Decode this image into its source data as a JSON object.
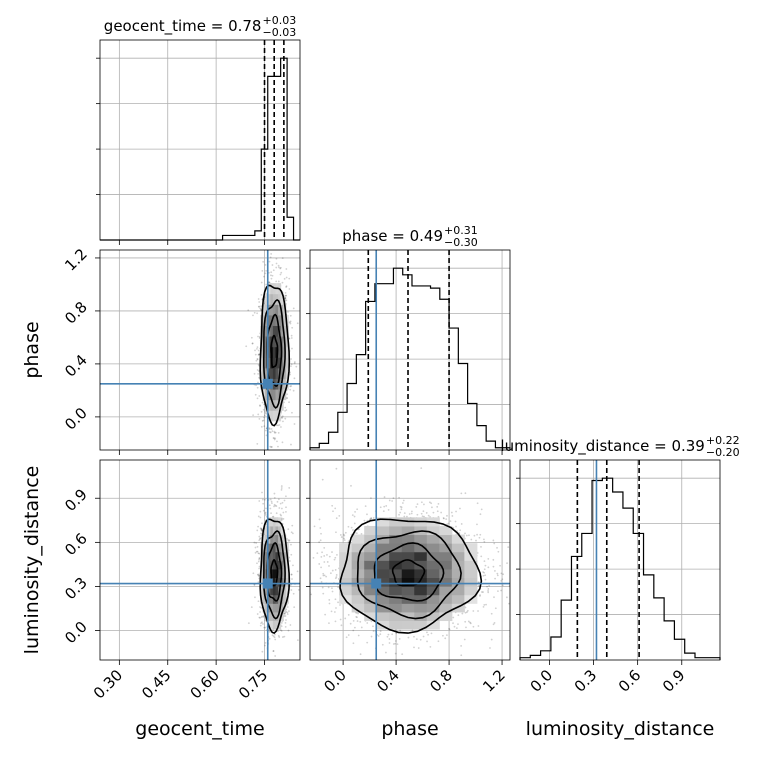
{
  "chart_data": {
    "type": "corner",
    "parameters": [
      "geocent_time",
      "phase",
      "luminosity_distance"
    ],
    "truths": {
      "geocent_time": 0.76,
      "phase": 0.25,
      "luminosity_distance": 0.32
    },
    "truth_color": "#4682b4",
    "titles": {
      "geocent_time": {
        "prefix": "geocent_time = 0.78",
        "plus": "+0.03",
        "minus": "−0.03"
      },
      "phase": {
        "prefix": "phase = 0.49",
        "plus": "+0.31",
        "minus": "−0.30"
      },
      "luminosity_distance": {
        "prefix": "luminosity_distance = 0.39",
        "plus": "+0.22",
        "minus": "−0.20"
      }
    },
    "quantiles": {
      "geocent_time": [
        0.75,
        0.78,
        0.81
      ],
      "phase": [
        0.19,
        0.49,
        0.8
      ],
      "luminosity_distance": [
        0.19,
        0.39,
        0.61
      ]
    },
    "axes": {
      "geocent_time": {
        "range": [
          0.24,
          0.86
        ],
        "ticks": [
          0.3,
          0.45,
          0.6,
          0.75
        ],
        "tick_labels": [
          "0.30",
          "0.45",
          "0.60",
          "0.75"
        ]
      },
      "phase": {
        "range": [
          -0.25,
          1.26
        ],
        "ticks": [
          0.0,
          0.4,
          0.8,
          1.2
        ],
        "tick_labels": [
          "0.0",
          "0.4",
          "0.8",
          "1.2"
        ]
      },
      "luminosity_distance": {
        "range": [
          -0.2,
          1.16
        ],
        "ticks": [
          0.0,
          0.3,
          0.6,
          0.9
        ],
        "tick_labels": [
          "0.0",
          "0.3",
          "0.6",
          "0.9"
        ]
      }
    },
    "histograms": {
      "geocent_time": {
        "edges": [
          0.24,
          0.62,
          0.72,
          0.74,
          0.76,
          0.78,
          0.8,
          0.82,
          0.84,
          0.86
        ],
        "counts": [
          0,
          1,
          2,
          20,
          36,
          36,
          40,
          5,
          0
        ]
      },
      "phase": {
        "edges": [
          -0.25,
          -0.18,
          -0.11,
          -0.04,
          0.03,
          0.1,
          0.17,
          0.24,
          0.31,
          0.38,
          0.45,
          0.52,
          0.59,
          0.66,
          0.73,
          0.8,
          0.87,
          0.94,
          1.01,
          1.08,
          1.15,
          1.26
        ],
        "counts": [
          1,
          3,
          8,
          17,
          30,
          43,
          67,
          75,
          75,
          82,
          79,
          74,
          74,
          73,
          68,
          55,
          39,
          21,
          11,
          4,
          1
        ]
      },
      "luminosity_distance": {
        "edges": [
          -0.2,
          -0.13,
          -0.06,
          0.01,
          0.08,
          0.15,
          0.22,
          0.29,
          0.36,
          0.43,
          0.5,
          0.57,
          0.64,
          0.71,
          0.78,
          0.85,
          0.92,
          0.99,
          1.06,
          1.16
        ],
        "counts": [
          1,
          2,
          4,
          10,
          26,
          45,
          55,
          78,
          79,
          73,
          66,
          55,
          37,
          27,
          17,
          9,
          3,
          1,
          1
        ]
      }
    },
    "joint": [
      {
        "x": "geocent_time",
        "y": "phase",
        "mean": [
          0.78,
          0.49
        ],
        "sd": [
          0.022,
          0.26
        ],
        "n": 1400,
        "contour_levels": [
          0.45,
          1.0,
          1.5,
          2.0
        ]
      },
      {
        "x": "geocent_time",
        "y": "luminosity_distance",
        "mean": [
          0.78,
          0.39
        ],
        "sd": [
          0.022,
          0.19
        ],
        "n": 1400,
        "contour_levels": [
          0.45,
          1.0,
          1.5,
          2.0
        ]
      },
      {
        "x": "phase",
        "y": "luminosity_distance",
        "mean": [
          0.49,
          0.39
        ],
        "sd": [
          0.26,
          0.19
        ],
        "n": 2500,
        "contour_levels": [
          0.45,
          1.0,
          1.5,
          2.0
        ]
      }
    ]
  }
}
